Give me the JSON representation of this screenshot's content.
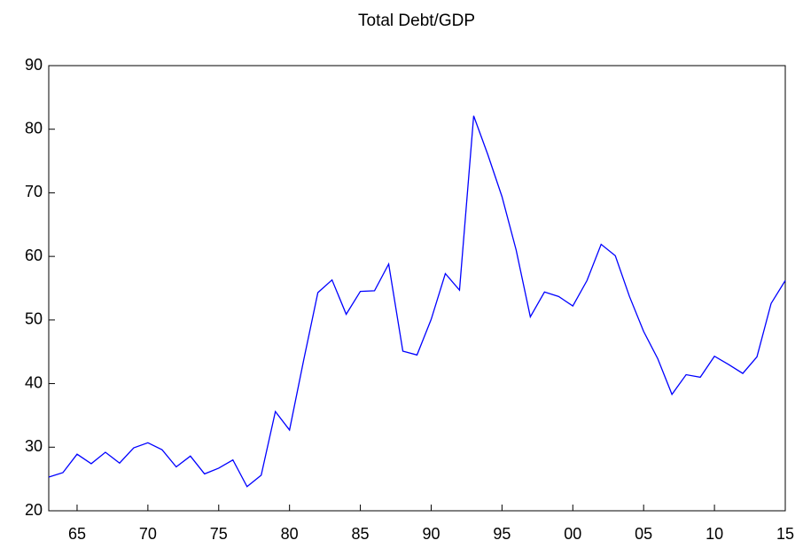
{
  "chart_data": {
    "type": "line",
    "title": "Total Debt/GDP",
    "categories": [
      null,
      null,
      "65",
      null,
      null,
      null,
      null,
      "70",
      null,
      null,
      null,
      null,
      "75",
      null,
      null,
      null,
      null,
      "80",
      null,
      null,
      null,
      null,
      "85",
      null,
      null,
      null,
      null,
      "90",
      null,
      null,
      null,
      null,
      "95",
      null,
      null,
      null,
      null,
      "00",
      null,
      null,
      null,
      null,
      "05",
      null,
      null,
      null,
      null,
      "10",
      null,
      null,
      null,
      null,
      "15"
    ],
    "series": [
      {
        "name": "Total Debt/GDP",
        "color": "#0000ff",
        "values": [
          25.3,
          26.0,
          28.9,
          27.4,
          29.2,
          27.5,
          29.9,
          30.7,
          29.6,
          26.9,
          28.6,
          25.8,
          26.7,
          28.0,
          23.8,
          25.6,
          35.6,
          32.7,
          43.7,
          54.3,
          56.3,
          50.9,
          54.5,
          54.6,
          58.8,
          45.1,
          44.5,
          50.1,
          57.3,
          54.7,
          82.1,
          76.0,
          69.4,
          61.0,
          50.5,
          54.4,
          53.7,
          52.2,
          56.2,
          61.9,
          60.1,
          53.7,
          48.2,
          43.9,
          38.3,
          41.4,
          41.0,
          44.3,
          43.0,
          41.6,
          44.2,
          52.6,
          56.2
        ]
      }
    ],
    "ylim": [
      20,
      90
    ],
    "yticks": [
      20,
      30,
      40,
      50,
      60,
      70,
      80,
      90
    ],
    "grid": false
  }
}
